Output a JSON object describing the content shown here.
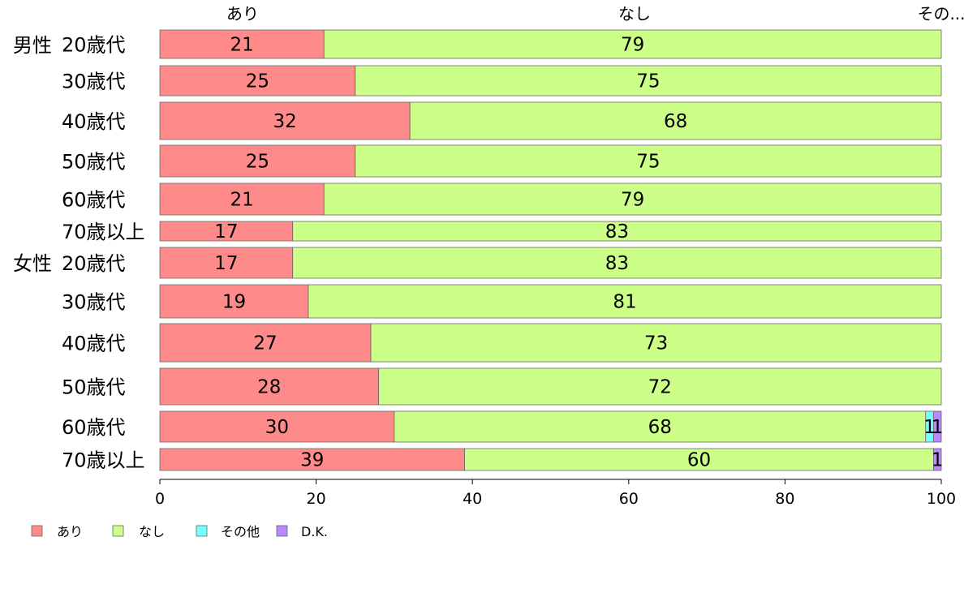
{
  "chart_data": {
    "type": "bar",
    "orientation": "horizontal",
    "stacked": true,
    "title": "",
    "xlabel": "",
    "ylabel": "",
    "xlim": [
      0,
      100
    ],
    "x_ticks": [
      0,
      20,
      40,
      60,
      80,
      100
    ],
    "grid": false,
    "legend_position": "bottom-left",
    "group_labels": [
      "男性",
      "女性"
    ],
    "top_labels": [
      "あり",
      "なし",
      "その..."
    ],
    "categories": [
      "20歳代",
      "30歳代",
      "40歳代",
      "50歳代",
      "60歳代",
      "70歳以上",
      "20歳代",
      "30歳代",
      "40歳代",
      "50歳代",
      "60歳代",
      "70歳以上"
    ],
    "series": [
      {
        "name": "あり",
        "color": "#ff8a8a",
        "values": [
          21,
          25,
          32,
          25,
          21,
          17,
          17,
          19,
          27,
          28,
          30,
          39
        ]
      },
      {
        "name": "なし",
        "color": "#ccff88",
        "values": [
          79,
          75,
          68,
          75,
          79,
          83,
          83,
          81,
          73,
          72,
          68,
          60
        ]
      },
      {
        "name": "その他",
        "color": "#77ffff",
        "values": [
          0,
          0,
          0,
          0,
          0,
          0,
          0,
          0,
          0,
          0,
          1,
          0
        ]
      },
      {
        "name": "D.K.",
        "color": "#bb88ff",
        "values": [
          0,
          0,
          0,
          0,
          0,
          0,
          0,
          0,
          0,
          0,
          1,
          1
        ]
      }
    ]
  }
}
